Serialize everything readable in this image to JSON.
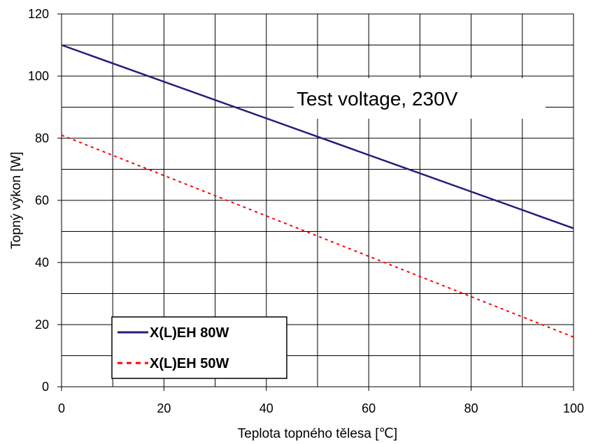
{
  "chart_data": {
    "type": "line",
    "title": "",
    "xlabel": "Teplota topného tělesa [℃]",
    "ylabel": "Topný výkon [W]",
    "xlim": [
      0,
      100
    ],
    "ylim": [
      0,
      120
    ],
    "x_ticks": [
      0,
      20,
      40,
      60,
      80,
      100
    ],
    "y_ticks": [
      0,
      20,
      40,
      60,
      80,
      100,
      120
    ],
    "x_grid_step": 10,
    "y_grid_step": 10,
    "grid": true,
    "annotation": "Test voltage, 230V",
    "legend_position": "bottom-left",
    "series": [
      {
        "name": "X(L)EH 80W",
        "color": "#2e1a7a",
        "style": "solid",
        "x": [
          0,
          100
        ],
        "y": [
          110,
          51
        ]
      },
      {
        "name": "X(L)EH 50W",
        "color": "#ff0000",
        "style": "dashed",
        "x": [
          0,
          100
        ],
        "y": [
          81,
          16
        ]
      }
    ]
  }
}
